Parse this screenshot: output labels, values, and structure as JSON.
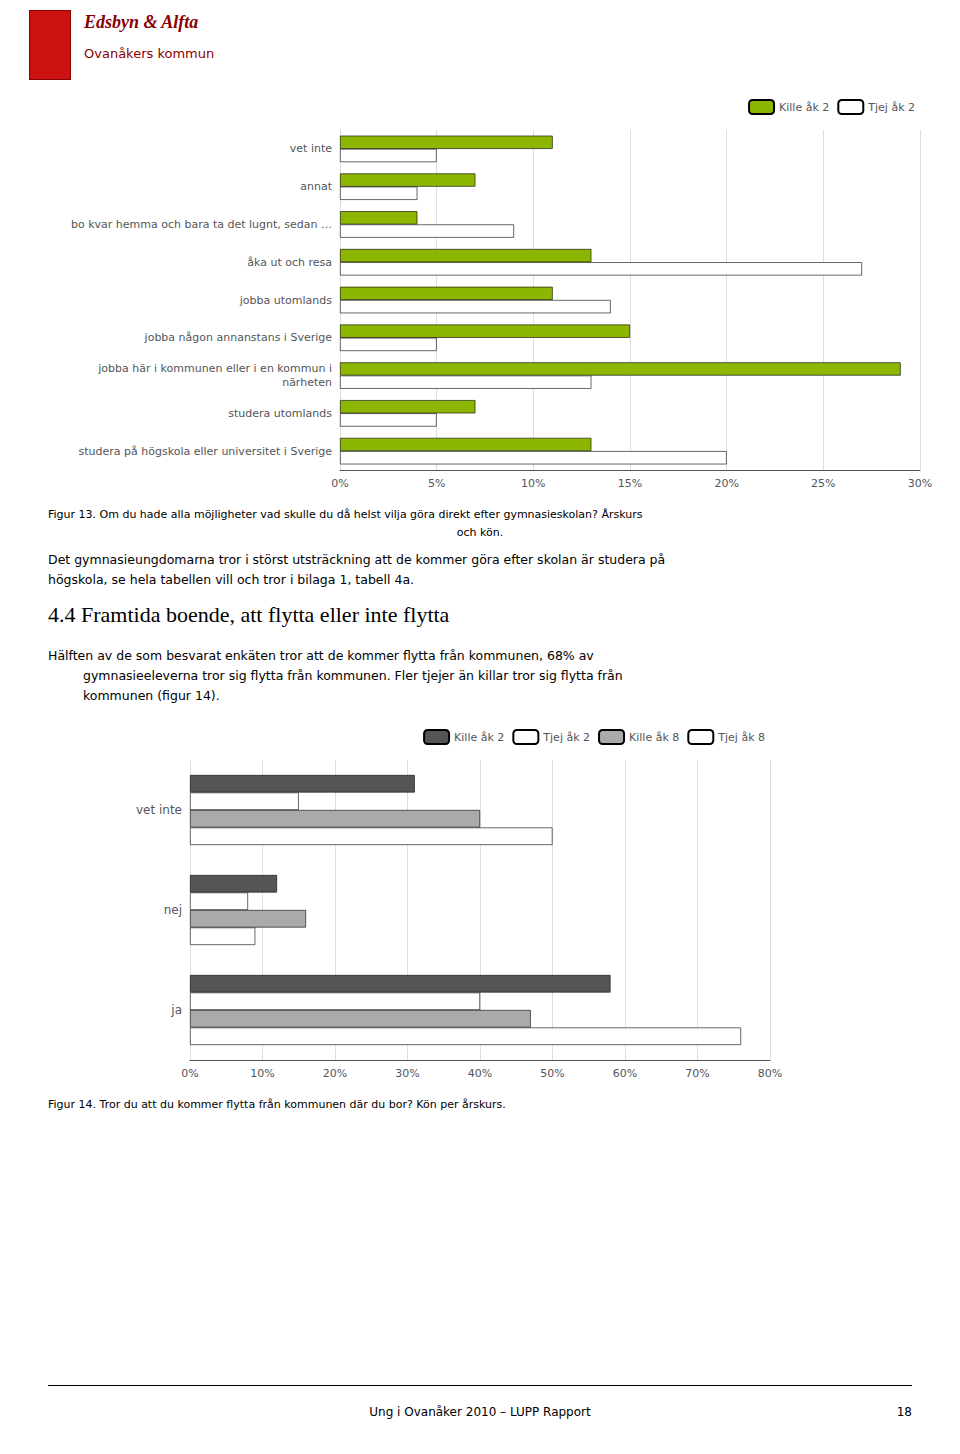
{
  "chart_data": [
    {
      "type": "bar",
      "orientation": "horizontal",
      "categories": [
        "vet inte",
        "annat",
        "bo kvar hemma och bara ta det lugnt, sedan …",
        "åka ut och resa",
        "jobba utomlands",
        "jobba någon annanstans i Sverige",
        "jobba här i kommunen eller i en kommun i\nnärheten",
        "studera utomlands",
        "studera på högskola eller universitet i Sverige"
      ],
      "series": [
        {
          "name": "Kille åk 2",
          "color": "#8db600",
          "values": [
            11,
            7,
            4,
            13,
            11,
            15,
            29,
            7,
            13
          ]
        },
        {
          "name": "Tjej åk 2",
          "color": "#ffffff",
          "values": [
            5,
            4,
            9,
            27,
            14,
            5,
            13,
            5,
            20
          ]
        }
      ],
      "xlim": [
        0,
        30
      ],
      "xticks": [
        {
          "value": 0,
          "label": "0%"
        },
        {
          "value": 5,
          "label": "5%"
        },
        {
          "value": 10,
          "label": "10%"
        },
        {
          "value": 15,
          "label": "15%"
        },
        {
          "value": 20,
          "label": "20%"
        },
        {
          "value": 25,
          "label": "25%"
        },
        {
          "value": 30,
          "label": "30%"
        }
      ],
      "grid": true,
      "legend": "upper right",
      "annotations": [
        "Edsbyn & Alfta",
        "Ovanåkers kommun",
        "Figur 13. Om du hade alla möjligheter vad skulle du då helst vilja göra direkt efter gymnasieskolan? Årskurs",
        "och kön.",
        "Det gymnasieungdomarna tror i störst utsträckning att de kommer göra efter skolan är studera på",
        "högskola, se hela tabellen vill och tror i bilaga 1, tabell 4a.",
        "4.4 Framtida boende, att flytta eller inte flytta",
        "Hälften av de som besvarat enkäten tror att de kommer flytta från kommunen, 68% av",
        "gymnasieeleverna tror sig flytta från kommunen. Fler tjejer än killar tror sig flytta från",
        "kommunen (figur 14)."
      ]
    },
    {
      "type": "bar",
      "orientation": "horizontal",
      "categories": [
        "vet inte",
        "nej",
        "ja"
      ],
      "series": [
        {
          "name": "Kille åk 2",
          "color": "#555555",
          "values": [
            31,
            12,
            58
          ]
        },
        {
          "name": "Tjej åk 2",
          "color": "#ffffff",
          "values": [
            15,
            8,
            40
          ]
        },
        {
          "name": "Kille åk 8",
          "color": "#aaaaaa",
          "values": [
            40,
            16,
            47
          ]
        },
        {
          "name": "Tjej åk 8",
          "color": "#ffffff",
          "values": [
            50,
            9,
            76
          ]
        }
      ],
      "xlim": [
        0,
        80
      ],
      "xticks": [
        {
          "value": 0,
          "label": "0%"
        },
        {
          "value": 10,
          "label": "10%"
        },
        {
          "value": 20,
          "label": "20%"
        },
        {
          "value": 30,
          "label": "30%"
        },
        {
          "value": 40,
          "label": "40%"
        },
        {
          "value": 50,
          "label": "50%"
        },
        {
          "value": 60,
          "label": "60%"
        },
        {
          "value": 70,
          "label": "70%"
        },
        {
          "value": 80,
          "label": "80%"
        }
      ],
      "grid": true,
      "legend": "upper right",
      "annotations": [
        "Figur 14. Tror du att du kommer flytta från kommunen där du bor? Kön per årskurs.",
        "Ung i Ovanåker 2010 – LUPP Rapport",
        "18"
      ]
    }
  ]
}
